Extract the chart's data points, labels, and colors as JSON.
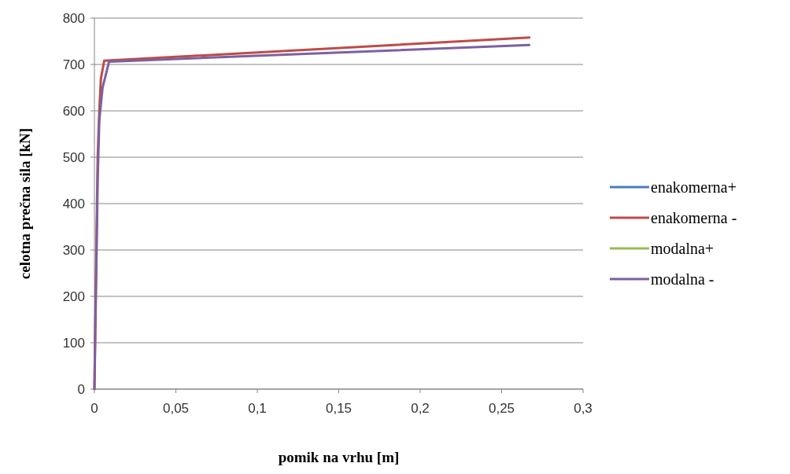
{
  "chart_data": {
    "type": "line",
    "xlabel": "pomik na vrhu [m]",
    "ylabel": "celotna prečna sila [kN]",
    "xlim": [
      0,
      0.3
    ],
    "ylim": [
      0,
      800
    ],
    "xticks": [
      0,
      {
        "value": 0.05,
        "label": "0,05"
      },
      {
        "value": 0.1,
        "label": "0,1"
      },
      {
        "value": 0.15,
        "label": "0,15"
      },
      {
        "value": 0.2,
        "label": "0,2"
      },
      {
        "value": 0.25,
        "label": "0,25"
      },
      {
        "value": 0.3,
        "label": "0,3"
      }
    ],
    "yticks": [
      0,
      100,
      200,
      300,
      400,
      500,
      600,
      700,
      800
    ],
    "grid": "y",
    "legend": "right",
    "marker": "none",
    "line_style": "solid",
    "series": [
      {
        "name": "enakomerna+",
        "color": "#4a7ebb"
      },
      {
        "name": "enakomerna -",
        "color": "#be4b48",
        "x": [
          0,
          0.002,
          0.003,
          0.004,
          0.006,
          0.267
        ],
        "values": [
          0,
          500,
          600,
          670,
          708,
          758
        ]
      },
      {
        "name": "modalna+",
        "color": "#98b954"
      },
      {
        "name": "modalna -",
        "color": "#7d60a0",
        "x": [
          0,
          0.002,
          0.003,
          0.005,
          0.009,
          0.267
        ],
        "values": [
          0,
          450,
          580,
          650,
          706,
          742
        ]
      }
    ]
  }
}
